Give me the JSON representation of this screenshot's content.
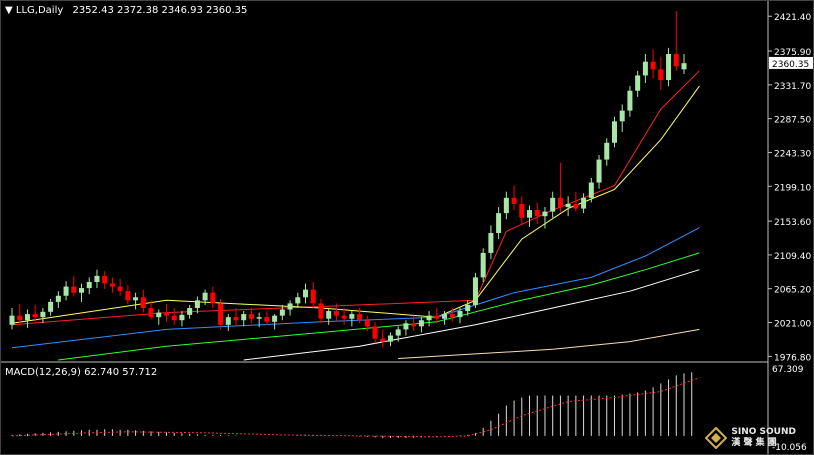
{
  "window": {
    "symbol_label": "LLG,Daily",
    "ohlc_text": "2352.43 2372.38 2346.93 2360.35"
  },
  "macd_header": "MACD(12,26,9) 62.740 57.712",
  "watermark": {
    "line1": "SINO SOUND",
    "line2": "漢 聲 集 團"
  },
  "colors": {
    "bull": "#a8e6a8",
    "bear": "#ff0000",
    "ma_fast": "#ff2020",
    "ma_mid": "#ffff66",
    "ma_blue": "#2f8fff",
    "ma_green": "#33ff33",
    "ma_white": "#ffffff",
    "ma_tan": "#f5deb3",
    "macd_signal": "#ff3030",
    "macd_hist": "#dddddd",
    "grid": "#c0c0c0"
  },
  "chart_data": [
    {
      "type": "candlestick",
      "title": "LLG,Daily",
      "price_axis_ticks": [
        "2421.40",
        "2375.90",
        "2331.70",
        "2287.50",
        "2243.30",
        "2199.10",
        "2153.60",
        "2109.40",
        "2065.20",
        "2021.00",
        "1976.80"
      ],
      "current_price_label": "2360.35",
      "ylim": [
        1972,
        2440
      ],
      "grid": false,
      "candles": [
        [
          2018,
          2040,
          2012,
          2030
        ],
        [
          2030,
          2045,
          2020,
          2024
        ],
        [
          2024,
          2038,
          2014,
          2032
        ],
        [
          2032,
          2044,
          2022,
          2028
        ],
        [
          2028,
          2040,
          2020,
          2035
        ],
        [
          2035,
          2052,
          2030,
          2048
        ],
        [
          2048,
          2062,
          2040,
          2056
        ],
        [
          2056,
          2075,
          2050,
          2068
        ],
        [
          2068,
          2082,
          2055,
          2060
        ],
        [
          2060,
          2072,
          2048,
          2066
        ],
        [
          2066,
          2080,
          2058,
          2074
        ],
        [
          2074,
          2090,
          2066,
          2082
        ],
        [
          2082,
          2088,
          2065,
          2072
        ],
        [
          2072,
          2080,
          2060,
          2068
        ],
        [
          2068,
          2078,
          2056,
          2062
        ],
        [
          2062,
          2070,
          2045,
          2050
        ],
        [
          2050,
          2060,
          2038,
          2054
        ],
        [
          2054,
          2064,
          2034,
          2040
        ],
        [
          2040,
          2050,
          2025,
          2028
        ],
        [
          2028,
          2038,
          2018,
          2034
        ],
        [
          2034,
          2045,
          2022,
          2030
        ],
        [
          2030,
          2040,
          2018,
          2024
        ],
        [
          2024,
          2036,
          2016,
          2031
        ],
        [
          2031,
          2044,
          2026,
          2040
        ],
        [
          2040,
          2055,
          2033,
          2050
        ],
        [
          2050,
          2064,
          2044,
          2060
        ],
        [
          2060,
          2068,
          2040,
          2046
        ],
        [
          2046,
          2052,
          2012,
          2018
        ],
        [
          2018,
          2032,
          2010,
          2028
        ],
        [
          2028,
          2040,
          2018,
          2024
        ],
        [
          2024,
          2036,
          2016,
          2032
        ],
        [
          2032,
          2040,
          2020,
          2026
        ],
        [
          2026,
          2034,
          2015,
          2028
        ],
        [
          2028,
          2036,
          2018,
          2022
        ],
        [
          2022,
          2032,
          2012,
          2030
        ],
        [
          2030,
          2044,
          2024,
          2038
        ],
        [
          2038,
          2050,
          2030,
          2046
        ],
        [
          2046,
          2060,
          2040,
          2054
        ],
        [
          2054,
          2072,
          2046,
          2064
        ],
        [
          2064,
          2074,
          2040,
          2046
        ],
        [
          2046,
          2052,
          2020,
          2026
        ],
        [
          2026,
          2040,
          2018,
          2036
        ],
        [
          2036,
          2046,
          2022,
          2030
        ],
        [
          2030,
          2040,
          2018,
          2026
        ],
        [
          2026,
          2036,
          2016,
          2032
        ],
        [
          2032,
          2040,
          2020,
          2024
        ],
        [
          2024,
          2030,
          2010,
          2016
        ],
        [
          2016,
          2022,
          1994,
          2000
        ],
        [
          2000,
          2012,
          1988,
          1996
        ],
        [
          1996,
          2008,
          1990,
          2004
        ],
        [
          2004,
          2016,
          1996,
          2012
        ],
        [
          2012,
          2024,
          2004,
          2020
        ],
        [
          2020,
          2030,
          2010,
          2016
        ],
        [
          2016,
          2028,
          2008,
          2024
        ],
        [
          2024,
          2036,
          2016,
          2030
        ],
        [
          2030,
          2040,
          2020,
          2026
        ],
        [
          2026,
          2036,
          2018,
          2032
        ],
        [
          2032,
          2040,
          2022,
          2028
        ],
        [
          2028,
          2042,
          2020,
          2036
        ],
        [
          2036,
          2050,
          2030,
          2044
        ],
        [
          2044,
          2086,
          2040,
          2080
        ],
        [
          2080,
          2118,
          2074,
          2112
        ],
        [
          2112,
          2148,
          2104,
          2138
        ],
        [
          2138,
          2172,
          2130,
          2164
        ],
        [
          2164,
          2192,
          2156,
          2184
        ],
        [
          2184,
          2200,
          2168,
          2176
        ],
        [
          2176,
          2186,
          2150,
          2158
        ],
        [
          2158,
          2174,
          2146,
          2168
        ],
        [
          2168,
          2178,
          2150,
          2160
        ],
        [
          2160,
          2172,
          2144,
          2166
        ],
        [
          2166,
          2192,
          2158,
          2184
        ],
        [
          2184,
          2230,
          2165,
          2172
        ],
        [
          2172,
          2186,
          2160,
          2176
        ],
        [
          2176,
          2192,
          2166,
          2170
        ],
        [
          2170,
          2190,
          2164,
          2184
        ],
        [
          2184,
          2210,
          2178,
          2204
        ],
        [
          2204,
          2240,
          2196,
          2234
        ],
        [
          2234,
          2262,
          2226,
          2256
        ],
        [
          2256,
          2290,
          2250,
          2284
        ],
        [
          2284,
          2306,
          2270,
          2298
        ],
        [
          2298,
          2330,
          2290,
          2324
        ],
        [
          2324,
          2350,
          2316,
          2344
        ],
        [
          2344,
          2372,
          2334,
          2362
        ],
        [
          2362,
          2378,
          2340,
          2352
        ],
        [
          2352,
          2368,
          2325,
          2338
        ],
        [
          2338,
          2380,
          2330,
          2372
        ],
        [
          2372,
          2428,
          2350,
          2356
        ],
        [
          2352,
          2372,
          2346,
          2360
        ]
      ],
      "moving_averages": [
        {
          "name": "ma_fast",
          "points": [
            [
              0,
              2018
            ],
            [
              20,
              2034
            ],
            [
              40,
              2042
            ],
            [
              60,
              2050
            ],
            [
              64,
              2140
            ],
            [
              70,
              2168
            ],
            [
              78,
              2200
            ],
            [
              84,
              2300
            ],
            [
              89,
              2350
            ]
          ]
        },
        {
          "name": "ma_mid",
          "points": [
            [
              0,
              2020
            ],
            [
              20,
              2050
            ],
            [
              40,
              2040
            ],
            [
              55,
              2028
            ],
            [
              60,
              2050
            ],
            [
              66,
              2130
            ],
            [
              72,
              2170
            ],
            [
              78,
              2195
            ],
            [
              84,
              2260
            ],
            [
              89,
              2330
            ]
          ]
        },
        {
          "name": "ma_blue",
          "points": [
            [
              0,
              1988
            ],
            [
              20,
              2012
            ],
            [
              40,
              2022
            ],
            [
              55,
              2028
            ],
            [
              65,
              2060
            ],
            [
              75,
              2080
            ],
            [
              82,
              2108
            ],
            [
              89,
              2145
            ]
          ]
        },
        {
          "name": "ma_green",
          "points": [
            [
              6,
              1972
            ],
            [
              20,
              1990
            ],
            [
              40,
              2008
            ],
            [
              55,
              2022
            ],
            [
              65,
              2048
            ],
            [
              75,
              2070
            ],
            [
              82,
              2090
            ],
            [
              89,
              2112
            ]
          ]
        },
        {
          "name": "ma_white",
          "points": [
            [
              30,
              1972
            ],
            [
              45,
              1990
            ],
            [
              60,
              2018
            ],
            [
              70,
              2040
            ],
            [
              80,
              2062
            ],
            [
              89,
              2090
            ]
          ]
        },
        {
          "name": "ma_tan",
          "points": [
            [
              50,
              1974
            ],
            [
              70,
              1986
            ],
            [
              80,
              1996
            ],
            [
              89,
              2012
            ]
          ]
        }
      ]
    },
    {
      "type": "bar",
      "title": "MACD(12,26,9)",
      "value_text": "62.740 57.712",
      "axis_ticks": [
        "67.309",
        "-10.056"
      ],
      "ylim": [
        -10.056,
        67.309
      ],
      "histogram": [
        1,
        1.5,
        2,
        2.5,
        3,
        3.5,
        4,
        4.5,
        5,
        5.5,
        6,
        6,
        6.5,
        6.5,
        6,
        6,
        5.5,
        5,
        4.5,
        4,
        3.5,
        3,
        2.5,
        2,
        1.5,
        1,
        1,
        1,
        0.5,
        0.5,
        0,
        0,
        0,
        0,
        0,
        0,
        0,
        0.5,
        1,
        1,
        0,
        0,
        0,
        0,
        0,
        -0.5,
        -1,
        -1.5,
        -2,
        -2,
        -2,
        -2,
        -2,
        -1.5,
        -1,
        -1,
        -0.5,
        0,
        0.5,
        1,
        3,
        8,
        15,
        22,
        30,
        35,
        38,
        40,
        40,
        40,
        40,
        40,
        40,
        40,
        40,
        40,
        40,
        40,
        40,
        41,
        42,
        43,
        45,
        48,
        52,
        56,
        60,
        62,
        63
      ],
      "signal": [
        [
          0,
          0
        ],
        [
          10,
          3
        ],
        [
          15,
          4
        ],
        [
          25,
          3
        ],
        [
          35,
          1
        ],
        [
          45,
          0
        ],
        [
          55,
          -1
        ],
        [
          59,
          0
        ],
        [
          62,
          6
        ],
        [
          66,
          20
        ],
        [
          72,
          34
        ],
        [
          78,
          38
        ],
        [
          84,
          44
        ],
        [
          89,
          57.712
        ]
      ]
    }
  ]
}
